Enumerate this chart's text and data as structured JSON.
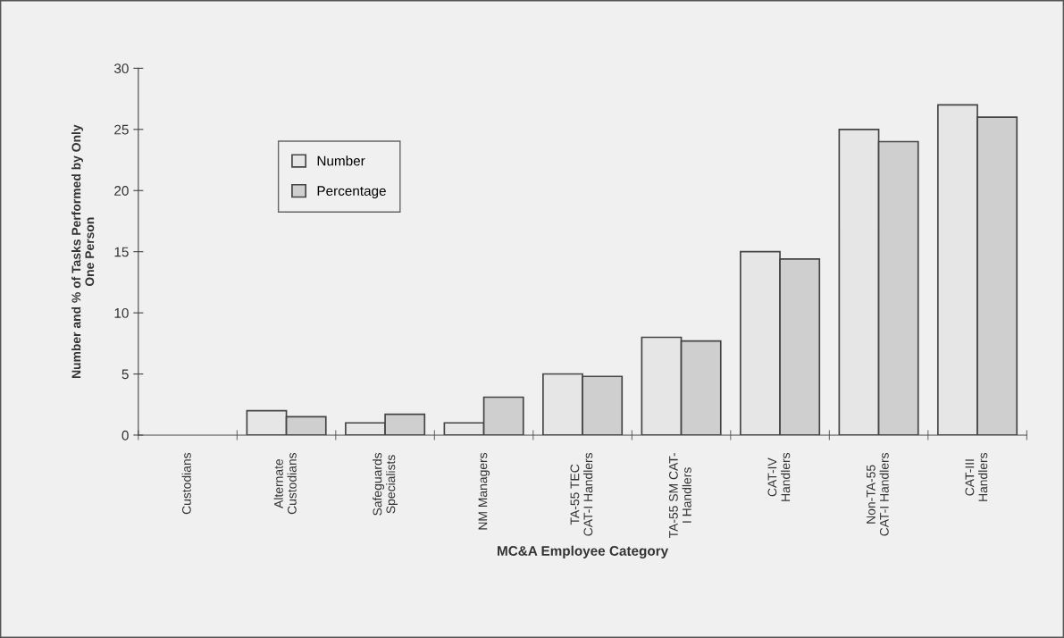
{
  "chart_data": {
    "type": "bar",
    "categories": [
      "Custodians",
      "Alternate\nCustodians",
      "Safeguards\nSpecialists",
      "NM Managers",
      "TA-55 TEC\nCAT-I Handlers",
      "TA-55 SM CAT-\nI Handlers",
      "CAT-IV\nHandlers",
      "Non-TA-55\nCAT-I Handlers",
      "CAT-III\nHandlers"
    ],
    "series": [
      {
        "name": "Number",
        "color": "#e6e6e6",
        "values": [
          0,
          2,
          1,
          1,
          5,
          8,
          15,
          25,
          27
        ]
      },
      {
        "name": "Percentage",
        "color": "#cfcfcf",
        "values": [
          0,
          1.5,
          1.7,
          3.1,
          4.8,
          7.7,
          14.4,
          24,
          26
        ]
      }
    ],
    "xlabel": "MC&A Employee Category",
    "ylabel": "Number and % of Tasks Performed by Only\nOne Person",
    "ylim": [
      0,
      30
    ],
    "yticks": [
      0,
      5,
      10,
      15,
      20,
      25,
      30
    ],
    "grid": false,
    "legend": "top left"
  }
}
